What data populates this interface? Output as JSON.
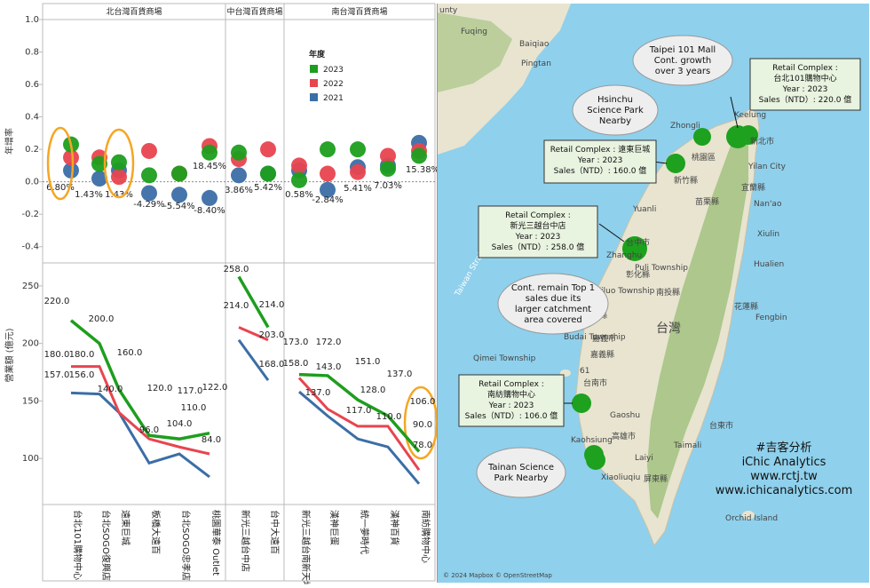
{
  "chart_data": {
    "type": "scatter+line",
    "regions": [
      {
        "name": "北台灣百貨商場",
        "stores": [
          "台北101購物中心",
          "台北SOGO復興店",
          "遠東巨城",
          "板橋大遠百",
          "台北SOGO忠孝店",
          "桃園華泰 Outlet"
        ]
      },
      {
        "name": "中台灣百貨商場",
        "stores": [
          "新光三越台中店",
          "台中大遠百"
        ]
      },
      {
        "name": "南台灣百貨商場",
        "stores": [
          "新光三越台南新天地",
          "漢神巨蛋",
          "統一夢時代",
          "漢神百貨",
          "南紡購物中心"
        ]
      }
    ],
    "legend_title": "年度",
    "legend": [
      {
        "name": "2023",
        "color": "#1e9e1e"
      },
      {
        "name": "2022",
        "color": "#e8454f"
      },
      {
        "name": "2021",
        "color": "#3b6ea6"
      }
    ],
    "growth": {
      "ylabel": "年增率",
      "ylim": [
        -0.5,
        1.0
      ],
      "yticks": [
        "1.0",
        "0.8",
        "0.6",
        "0.4",
        "0.2",
        "0.0",
        "-0.2",
        "-0.4"
      ],
      "series": [
        {
          "name": "2023",
          "values": [
            0.23,
            0.11,
            0.12,
            0.04,
            0.05,
            0.18,
            0.18,
            0.05,
            0.01,
            0.2,
            0.2,
            0.08,
            0.16
          ]
        },
        {
          "name": "2022",
          "values": [
            0.15,
            0.15,
            0.03,
            0.19,
            0.05,
            0.22,
            0.14,
            0.2,
            0.1,
            0.05,
            0.06,
            0.16,
            0.19
          ]
        },
        {
          "name": "2021",
          "values": [
            0.07,
            0.02,
            0.07,
            -0.07,
            -0.08,
            -0.1,
            0.04,
            0.05,
            0.07,
            -0.05,
            0.09,
            0.1,
            0.24
          ]
        }
      ],
      "labels": [
        "6.80%",
        "1.43%",
        "1.43%",
        "-4.29%",
        "-5.54%",
        "-8.40%",
        "3.86%",
        "5.42%",
        "0.58%",
        "-2.84%",
        "5.41%",
        "7.03%",
        "15.38%",
        "18.45%"
      ]
    },
    "sales": {
      "ylabel": "營業額 (億元)",
      "ylim": [
        60,
        270
      ],
      "yticks": [
        "250",
        "200",
        "150",
        "100"
      ],
      "series": [
        {
          "name": "2023",
          "values": [
            220,
            200,
            160,
            120,
            117,
            122,
            258,
            214,
            173,
            172,
            151,
            137,
            106
          ]
        },
        {
          "name": "2022",
          "values": [
            180,
            180,
            140,
            117,
            110,
            104,
            214,
            203,
            170,
            143,
            128,
            128,
            90
          ]
        },
        {
          "name": "2021",
          "values": [
            157,
            156,
            140,
            96,
            104,
            84,
            203,
            168,
            158,
            137,
            117,
            110,
            78
          ]
        }
      ],
      "labels": [
        "220.0",
        "180.0",
        "157.0",
        "200.0",
        "180.0",
        "156.0",
        "160.0",
        "140.0",
        "120.0",
        "96.0",
        "117.0",
        "104.0",
        "110.0",
        "122.0",
        "84.0",
        "258.0",
        "214.0",
        "214.0",
        "203.0",
        "168.0",
        "173.0",
        "172.0",
        "158.0",
        "143.0",
        "137.0",
        "151.0",
        "117.0",
        "128.0",
        "137.0",
        "110.0",
        "106.0",
        "90.0",
        "78.0"
      ]
    }
  },
  "map": {
    "places": [
      "Fuqing",
      "Baiqiao",
      "Pingtan",
      "Zhongli",
      "Keelung",
      "新北市",
      "桃園區",
      "新竹縣",
      "苗栗縣",
      "Yilan City",
      "宜蘭縣",
      "Nan'ao",
      "Xiulin",
      "Yuanli",
      "台中市",
      "Zhanghu",
      "彰化縣",
      "Puli Township",
      "南投縣",
      "Hualien",
      "Xiluo Township",
      "雲林縣",
      "花蓮縣",
      "Fengbin",
      "台灣",
      "Budai Township",
      "嘉義市",
      "嘉義縣",
      "Qimei Township",
      "台南市",
      "Gaoshu",
      "高雄市",
      "屏東縣",
      "台東市",
      "Taimali",
      "Laiyi",
      "Xiaoliuqiu",
      "Kaohsiung",
      "Orchid Island",
      "Taiwan Strait",
      "unty",
      "61",
      "© 2024 Mapbox © OpenStreetMap"
    ],
    "bubbles": [
      {
        "text": "Taipei 101 Mall Cont. growth over 3 years"
      },
      {
        "text": "Hsinchu Science Park Nearby"
      },
      {
        "text": "Cont. remain Top 1 sales due its larger catchment area covered"
      },
      {
        "text": "Tainan Science Park Nearby"
      }
    ],
    "boxes": [
      {
        "l1": "Retail Complex :",
        "l2": "台北101購物中心",
        "l3": "Year : 2023",
        "l4": "Sales（NTD）: 220.0 億"
      },
      {
        "l1": "Retail Complex : 遠東巨城",
        "l2": "",
        "l3": "Year : 2023",
        "l4": "Sales（NTD）: 160.0 億"
      },
      {
        "l1": "Retail Complex :",
        "l2": "新光三越台中店",
        "l3": "Year : 2023",
        "l4": "Sales（NTD）: 258.0 億"
      },
      {
        "l1": "Retail Complex :",
        "l2": "南紡購物中心",
        "l3": "Year : 2023",
        "l4": "Sales（NTD）: 106.0 億"
      }
    ],
    "brand": [
      "#吉客分析",
      "iChic Analytics",
      "www.rctj.tw",
      "www.ichicanalytics.com"
    ],
    "colors": {
      "sea": "#8fd0ec",
      "land": "#e8e4d0",
      "mountain": "#9dbf7a",
      "dot": "#1ea11e"
    }
  }
}
